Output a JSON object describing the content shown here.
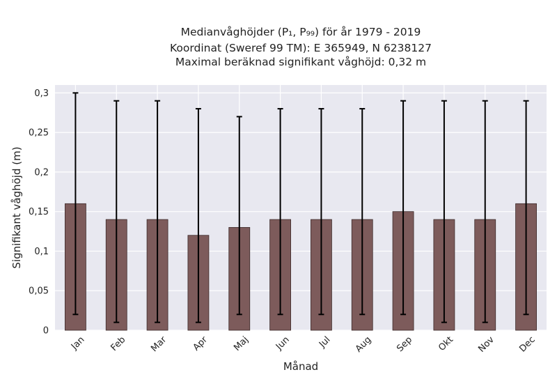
{
  "chart_data": {
    "type": "bar",
    "title_lines": [
      "Medianvåghöjder (P₁, P₉₉) för år 1979 - 2019",
      "Koordinat (Sweref 99 TM): E 365949, N 6238127",
      "Maximal beräknad signifikant våghöjd: 0,32 m"
    ],
    "xlabel": "Månad",
    "ylabel": "Signifikant våghöjd (m)",
    "categories": [
      "Jan",
      "Feb",
      "Mar",
      "Apr",
      "Maj",
      "Jun",
      "Jul",
      "Aug",
      "Sep",
      "Okt",
      "Nov",
      "Dec"
    ],
    "values": [
      0.16,
      0.14,
      0.14,
      0.12,
      0.13,
      0.14,
      0.14,
      0.14,
      0.15,
      0.14,
      0.14,
      0.16
    ],
    "p1": [
      0.02,
      0.01,
      0.01,
      0.01,
      0.02,
      0.02,
      0.02,
      0.02,
      0.02,
      0.01,
      0.01,
      0.02
    ],
    "p99": [
      0.3,
      0.29,
      0.29,
      0.28,
      0.27,
      0.28,
      0.28,
      0.28,
      0.29,
      0.29,
      0.29,
      0.29
    ],
    "ylim": [
      0,
      0.31
    ],
    "yticks": [
      0,
      0.05,
      0.1,
      0.15,
      0.2,
      0.25,
      0.3
    ],
    "ytick_labels": [
      "0",
      "0,05",
      "0,1",
      "0,15",
      "0,2",
      "0,25",
      "0,3"
    ],
    "grid": true,
    "colors": {
      "bar": "#7d5b5b",
      "bar_edge": "#3c2a2a",
      "plot_bg": "#e8e8f0",
      "grid": "#ffffff",
      "error": "#000000"
    }
  }
}
